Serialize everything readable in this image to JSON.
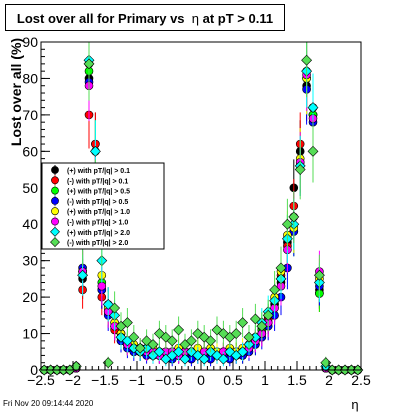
{
  "footer_text": "Fri Nov 20 09:14:44 2020",
  "chart_data": {
    "type": "scatter",
    "title": "Lost over all for Primary vs  η at pT > 0.11",
    "title_parts": [
      "Lost over all for Primary vs  ",
      "η",
      " at pT > 0.11"
    ],
    "xlabel": "η",
    "ylabel": "Lost over all (%)",
    "xlim": [
      -2.5,
      2.5
    ],
    "ylim": [
      0,
      90
    ],
    "xticks": [
      -2.5,
      -2,
      -1.5,
      -1,
      -0.5,
      0,
      0.5,
      1,
      1.5,
      2,
      2.5
    ],
    "xtick_labels": [
      "−2.5",
      "−2",
      "−1.5",
      "−1",
      "−0.5",
      "0",
      "0.5",
      "1",
      "1.5",
      "2",
      "2.5"
    ],
    "yticks": [
      0,
      10,
      20,
      30,
      40,
      50,
      60,
      70,
      80,
      90
    ],
    "ytick_labels": [
      "0",
      "10",
      "20",
      "30",
      "40",
      "50",
      "60",
      "70",
      "80",
      "90"
    ],
    "grid": false,
    "legend_position": "center-left",
    "x": [
      -2.45,
      -2.35,
      -2.25,
      -2.15,
      -2.05,
      -1.95,
      -1.85,
      -1.75,
      -1.65,
      -1.55,
      -1.45,
      -1.35,
      -1.25,
      -1.15,
      -1.05,
      -0.95,
      -0.85,
      -0.75,
      -0.65,
      -0.55,
      -0.45,
      -0.35,
      -0.25,
      -0.15,
      -0.05,
      0.05,
      0.15,
      0.25,
      0.35,
      0.45,
      0.55,
      0.65,
      0.75,
      0.85,
      0.95,
      1.05,
      1.15,
      1.25,
      1.35,
      1.45,
      1.55,
      1.65,
      1.75,
      1.85,
      1.95,
      2.05,
      2.15,
      2.25,
      2.35,
      2.45
    ],
    "series": [
      {
        "name": "(+) with pT/|q| > 0.1",
        "color": "#000000",
        "marker": "circle",
        "values": [
          0,
          0,
          0,
          0,
          0,
          0.5,
          25,
          80,
          62,
          22,
          18,
          12,
          10,
          7,
          6,
          5,
          5,
          5,
          4,
          4,
          5,
          4,
          4,
          5,
          4,
          5,
          4,
          4,
          5,
          5,
          4,
          5,
          6,
          8,
          11,
          14,
          18,
          24,
          35,
          50,
          60,
          78,
          70,
          22,
          0.5,
          0,
          0,
          0,
          0,
          0
        ]
      },
      {
        "name": "(-) with pT/|q| > 0.1",
        "color": "#ff0000",
        "marker": "circle",
        "values": [
          0,
          0,
          0,
          0,
          0,
          1,
          22,
          70,
          62,
          20,
          17,
          11,
          9,
          7,
          6,
          5,
          5,
          4,
          4,
          4,
          4,
          5,
          4,
          4,
          5,
          4,
          4,
          5,
          4,
          4,
          5,
          4,
          6,
          8,
          10,
          14,
          19,
          26,
          34,
          45,
          62,
          82,
          70,
          21,
          0.5,
          0,
          0,
          0,
          0,
          0
        ]
      },
      {
        "name": "(+) with pT/|q| > 0.5",
        "color": "#00ff00",
        "marker": "circle",
        "values": [
          0,
          0,
          0,
          0,
          0,
          0.5,
          27,
          82,
          60,
          24,
          16,
          13,
          8,
          7,
          6,
          6,
          5,
          5,
          5,
          4,
          4,
          4,
          5,
          4,
          4,
          5,
          5,
          4,
          4,
          5,
          5,
          4,
          6,
          7,
          11,
          13,
          19,
          25,
          36,
          38,
          57,
          80,
          70,
          21,
          0.5,
          0,
          0,
          0,
          0,
          0
        ]
      },
      {
        "name": "(-) with pT/|q| > 0.5",
        "color": "#0000ff",
        "marker": "circle",
        "values": [
          0,
          0,
          0,
          0,
          0,
          0.5,
          28,
          79,
          55,
          22,
          15,
          12,
          8,
          6,
          5,
          5,
          4,
          4,
          4,
          4,
          3,
          4,
          4,
          3,
          4,
          4,
          3,
          4,
          4,
          3,
          4,
          4,
          5,
          7,
          9,
          12,
          15,
          20,
          28,
          38,
          56,
          77,
          68,
          23,
          0.5,
          0,
          0,
          0,
          0,
          0
        ]
      },
      {
        "name": "(+) with pT/|q| > 1.0",
        "color": "#ffff00",
        "marker": "circle",
        "values": [
          0,
          0,
          0,
          0,
          0,
          0.5,
          27,
          84,
          55,
          26,
          17,
          13,
          10,
          7,
          7,
          6,
          6,
          6,
          5,
          5,
          5,
          6,
          5,
          5,
          6,
          5,
          6,
          5,
          5,
          6,
          5,
          6,
          7,
          9,
          12,
          15,
          20,
          27,
          37,
          39,
          58,
          80,
          72,
          25,
          0.5,
          0,
          0,
          0,
          0,
          0
        ]
      },
      {
        "name": "(-) with pT/|q| > 1.0",
        "color": "#ff00ff",
        "marker": "circle",
        "values": [
          0,
          0,
          0,
          0,
          0,
          0.5,
          27,
          78,
          55,
          23,
          16,
          12,
          9,
          7,
          6,
          6,
          5,
          5,
          4,
          5,
          5,
          4,
          5,
          5,
          4,
          5,
          5,
          4,
          5,
          5,
          4,
          5,
          6,
          8,
          10,
          13,
          17,
          23,
          33,
          42,
          57,
          81,
          69,
          27,
          0.5,
          0,
          0,
          0,
          0,
          0
        ]
      },
      {
        "name": "(+) with pT/|q| > 2.0",
        "color": "#00ffff",
        "marker": "diamond",
        "values": [
          0,
          0,
          0,
          0,
          0,
          1,
          26,
          85,
          60,
          30,
          18,
          15,
          9,
          8,
          6,
          5,
          6,
          4,
          5,
          3,
          4,
          5,
          3,
          5,
          4,
          3,
          5,
          4,
          3,
          5,
          4,
          5,
          7,
          9,
          13,
          16,
          19,
          25,
          36,
          40,
          56,
          82,
          72,
          24,
          1,
          0,
          0,
          0,
          0,
          0
        ]
      },
      {
        "name": "(-) with pT/|q| > 2.0",
        "color": "#55dd55",
        "marker": "diamond",
        "values": [
          0,
          0,
          0,
          0,
          0,
          1,
          35,
          84,
          50,
          35,
          2,
          17,
          12,
          13,
          9,
          6,
          8,
          7,
          10,
          9,
          8,
          11,
          7,
          8,
          10,
          9,
          8,
          11,
          10,
          9,
          10,
          13,
          9,
          14,
          12,
          15,
          22,
          28,
          40,
          42,
          55,
          85,
          60,
          26,
          2,
          0,
          0,
          0,
          0,
          0
        ]
      }
    ]
  }
}
